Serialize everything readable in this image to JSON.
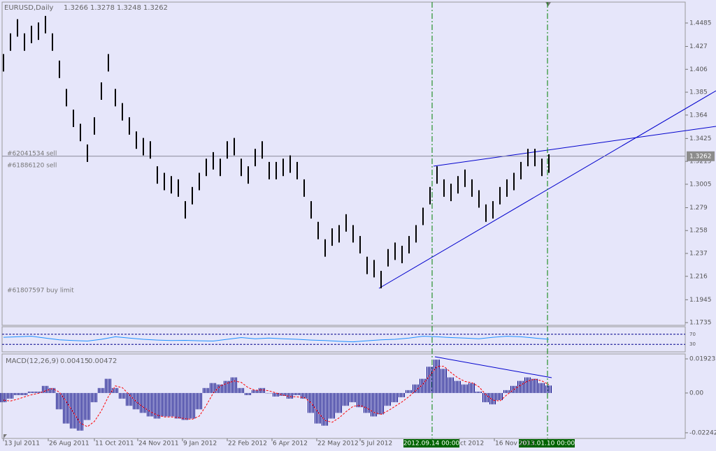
{
  "chart_data": [
    {
      "type": "ohlc",
      "title": "EURUSD,Daily",
      "header_values": [
        1.3266,
        1.3278,
        1.3248,
        1.3262
      ],
      "orders": [
        "#62041534 sell",
        "#61886120 sell",
        "#61807597 buy limit"
      ],
      "current_price": 1.3262,
      "color": "#000000",
      "xlim": [
        -1,
        487.5
      ],
      "ylim": [
        1.171,
        1.4677
      ],
      "yticks": [
        1.4485,
        1.427,
        1.406,
        1.385,
        1.364,
        1.3425,
        1.3215,
        1.3005,
        1.279,
        1.258,
        1.237,
        1.216,
        1.1945,
        1.1735
      ],
      "vlines": [
        {
          "value": 306.5,
          "label": "2012.09.14 00:00"
        },
        {
          "value": 389,
          "label": "2013.01.10 00:00"
        }
      ],
      "x": [
        0,
        5,
        10,
        15,
        20,
        25,
        30,
        35,
        40,
        45,
        50,
        55,
        60,
        65,
        70,
        75,
        80,
        85,
        90,
        95,
        100,
        105,
        110,
        115,
        120,
        125,
        130,
        135,
        140,
        145,
        150,
        155,
        160,
        165,
        170,
        175,
        180,
        185,
        190,
        195,
        200,
        205,
        210,
        215,
        220,
        225,
        230,
        235,
        240,
        245,
        250,
        255,
        260,
        265,
        270,
        275,
        280,
        285,
        290,
        295,
        300,
        305,
        310,
        315,
        320,
        325,
        330,
        335,
        340,
        345,
        350,
        355,
        360,
        365,
        370,
        375,
        380,
        385,
        390
      ],
      "high": [
        1.42,
        1.439,
        1.452,
        1.439,
        1.446,
        1.449,
        1.455,
        1.439,
        1.414,
        1.388,
        1.369,
        1.356,
        1.337,
        1.362,
        1.394,
        1.42,
        1.388,
        1.375,
        1.362,
        1.349,
        1.343,
        1.34,
        1.317,
        1.311,
        1.308,
        1.305,
        1.285,
        1.298,
        1.311,
        1.324,
        1.33,
        1.324,
        1.34,
        1.343,
        1.324,
        1.317,
        1.333,
        1.34,
        1.321,
        1.321,
        1.324,
        1.327,
        1.321,
        1.305,
        1.285,
        1.266,
        1.25,
        1.26,
        1.263,
        1.273,
        1.263,
        1.253,
        1.234,
        1.231,
        1.221,
        1.241,
        1.247,
        1.244,
        1.253,
        1.263,
        1.279,
        1.298,
        1.317,
        1.305,
        1.301,
        1.308,
        1.314,
        1.305,
        1.295,
        1.282,
        1.285,
        1.298,
        1.305,
        1.311,
        1.321,
        1.333,
        1.333,
        1.324,
        1.328
      ],
      "low": [
        1.404,
        1.423,
        1.436,
        1.423,
        1.43,
        1.433,
        1.439,
        1.423,
        1.398,
        1.372,
        1.353,
        1.34,
        1.321,
        1.346,
        1.378,
        1.404,
        1.372,
        1.359,
        1.346,
        1.333,
        1.327,
        1.324,
        1.301,
        1.295,
        1.292,
        1.289,
        1.269,
        1.282,
        1.295,
        1.308,
        1.314,
        1.308,
        1.324,
        1.327,
        1.308,
        1.301,
        1.317,
        1.324,
        1.305,
        1.305,
        1.308,
        1.311,
        1.305,
        1.289,
        1.269,
        1.25,
        1.234,
        1.244,
        1.247,
        1.257,
        1.247,
        1.237,
        1.218,
        1.215,
        1.205,
        1.225,
        1.231,
        1.228,
        1.237,
        1.247,
        1.263,
        1.282,
        1.301,
        1.289,
        1.285,
        1.292,
        1.298,
        1.289,
        1.279,
        1.266,
        1.269,
        1.282,
        1.289,
        1.295,
        1.305,
        1.317,
        1.317,
        1.308,
        1.311
      ]
    },
    {
      "type": "line",
      "color": "#1e90ff",
      "xlim": [
        -1,
        487.5
      ],
      "ylim": [
        0,
        100
      ],
      "yticks": [
        70,
        30
      ],
      "x": [
        0,
        10,
        20,
        30,
        40,
        50,
        60,
        70,
        80,
        90,
        100,
        110,
        120,
        130,
        140,
        150,
        160,
        170,
        180,
        190,
        200,
        210,
        220,
        230,
        240,
        250,
        260,
        270,
        280,
        290,
        300,
        310,
        320,
        330,
        340,
        350,
        360,
        370,
        380,
        390
      ],
      "values": [
        58,
        60,
        62,
        55,
        48,
        45,
        43,
        50,
        60,
        55,
        50,
        47,
        45,
        46,
        44,
        43,
        50,
        57,
        52,
        55,
        52,
        50,
        47,
        45,
        42,
        40,
        44,
        48,
        50,
        55,
        62,
        60,
        57,
        55,
        52,
        58,
        62,
        60,
        55,
        50
      ]
    },
    {
      "type": "bar",
      "title": "MACD(12,26,9)",
      "header_values": [
        0.00415,
        0.00472
      ],
      "xlim": [
        -1,
        487.5
      ],
      "ylim": [
        -0.0256,
        0.022
      ],
      "yticks": [
        0.01923,
        {
          "value": 0,
          "label": "0.00"
        },
        -0.02242
      ],
      "xticks": [
        {
          "value": 0,
          "label": "13 Jul 2011"
        },
        {
          "value": 32,
          "label": "26 Aug 2011"
        },
        {
          "value": 65,
          "label": "11 Oct 2011"
        },
        {
          "value": 96,
          "label": "24 Nov 2011"
        },
        {
          "value": 128,
          "label": "9 Jan 2012"
        },
        {
          "value": 160,
          "label": "22 Feb 2012"
        },
        {
          "value": 192,
          "label": "6 Apr 2012"
        },
        {
          "value": 224,
          "label": "22 May 2012"
        },
        {
          "value": 255,
          "label": "5 Jul 2012"
        },
        {
          "value": 326,
          "label": "ct 2012"
        },
        {
          "value": 351,
          "label": "16 Nov 2012"
        }
      ],
      "x": [
        0,
        5,
        10,
        15,
        20,
        25,
        30,
        35,
        40,
        45,
        50,
        55,
        60,
        65,
        70,
        75,
        80,
        85,
        90,
        95,
        100,
        105,
        110,
        115,
        120,
        125,
        130,
        135,
        140,
        145,
        150,
        155,
        160,
        165,
        170,
        175,
        180,
        185,
        190,
        195,
        200,
        205,
        210,
        215,
        220,
        225,
        230,
        235,
        240,
        245,
        250,
        255,
        260,
        265,
        270,
        275,
        280,
        285,
        290,
        295,
        300,
        305,
        310,
        315,
        320,
        325,
        330,
        335,
        340,
        345,
        350,
        355,
        360,
        365,
        370,
        375,
        380,
        385,
        390
      ],
      "series": [
        {
          "color": "#000080",
          "values": [
            -0.0052,
            -0.0032,
            -0.0012,
            -0.0012,
            0.0008,
            0.0008,
            0.004,
            0.0028,
            -0.0092,
            -0.0172,
            -0.02,
            -0.0212,
            -0.0152,
            -0.0052,
            0.0028,
            0.008,
            0.0028,
            -0.0032,
            -0.0072,
            -0.0092,
            -0.0112,
            -0.0132,
            -0.0144,
            -0.0132,
            -0.0132,
            -0.0144,
            -0.0152,
            -0.0144,
            -0.0092,
            0.0028,
            0.0056,
            0.0048,
            0.0068,
            0.0088,
            0.0028,
            -0.0012,
            0.0016,
            0.0028,
            0,
            -0.002,
            -0.0016,
            -0.0032,
            -0.0012,
            -0.0032,
            -0.0112,
            -0.0172,
            -0.0184,
            -0.0144,
            -0.0112,
            -0.0072,
            -0.0052,
            -0.008,
            -0.0112,
            -0.0132,
            -0.012,
            -0.0072,
            -0.0052,
            -0.0024,
            0.0016,
            0.0048,
            0.008,
            0.0148,
            0.0188,
            0.0136,
            0.0088,
            0.0068,
            0.0048,
            0.0056,
            0.0008,
            -0.0052,
            -0.0064,
            -0.004,
            0.0016,
            0.004,
            0.0068,
            0.0088,
            0.008,
            0.0056,
            0.0042
          ]
        },
        {
          "color": "#ff0000",
          "values": [
            -0.004,
            -0.0045,
            -0.0035,
            -0.0022,
            -0.001,
            -0.0002,
            0.0012,
            0.0025,
            0.0005,
            -0.005,
            -0.011,
            -0.017,
            -0.019,
            -0.016,
            -0.01,
            -0.002,
            0.004,
            0.003,
            -0.001,
            -0.005,
            -0.008,
            -0.0105,
            -0.0125,
            -0.0135,
            -0.0135,
            -0.0138,
            -0.0145,
            -0.0148,
            -0.013,
            -0.007,
            0,
            0.004,
            0.0055,
            0.0068,
            0.006,
            0.003,
            0.0015,
            0.0018,
            0.0012,
            0,
            -0.0012,
            -0.002,
            -0.0022,
            -0.0025,
            -0.0055,
            -0.011,
            -0.0155,
            -0.0165,
            -0.014,
            -0.0105,
            -0.0075,
            -0.007,
            -0.0085,
            -0.011,
            -0.012,
            -0.01,
            -0.0075,
            -0.005,
            -0.002,
            0.0015,
            0.005,
            0.01,
            0.015,
            0.015,
            0.0115,
            0.0085,
            0.0065,
            0.0058,
            0.0035,
            -0.001,
            -0.004,
            -0.0045,
            -0.001,
            0.002,
            0.0045,
            0.0068,
            0.0078,
            0.0068,
            0.0047
          ]
        }
      ]
    }
  ]
}
